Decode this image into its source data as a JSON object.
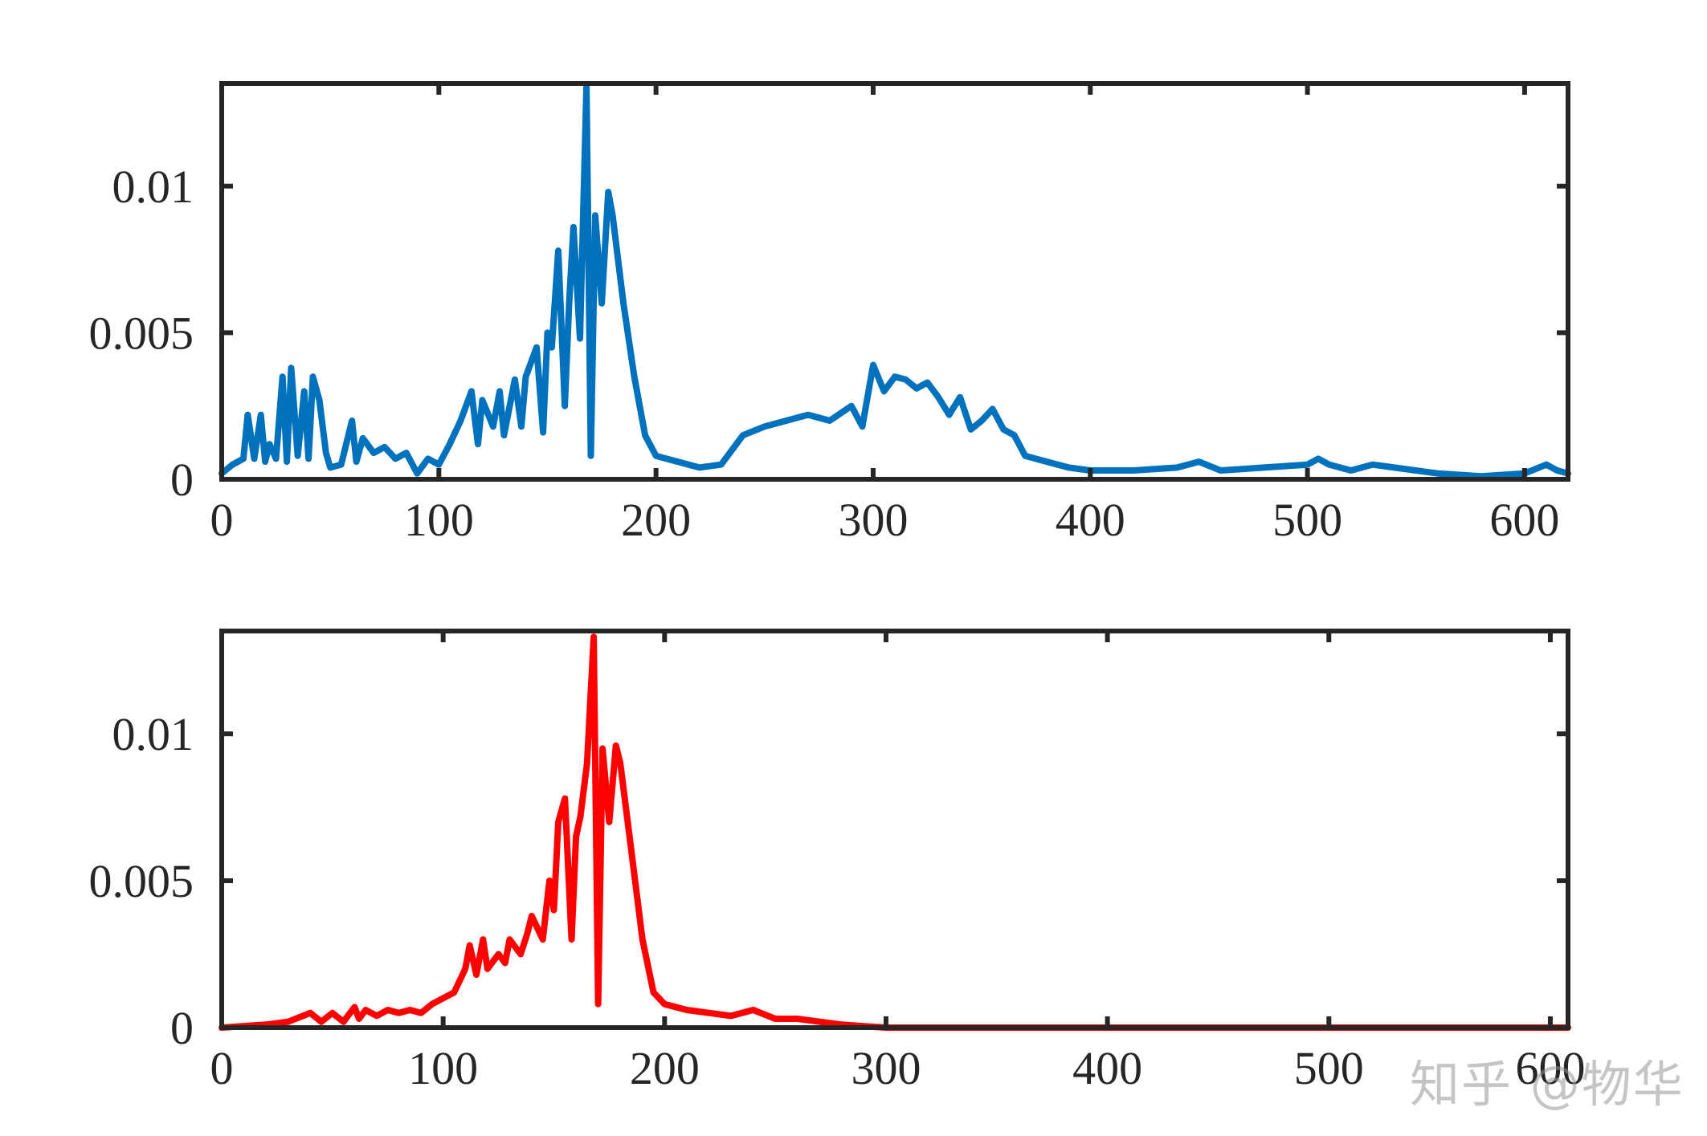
{
  "watermark": "知乎 @物华",
  "chart_data": [
    {
      "type": "line",
      "title": "",
      "xlabel": "",
      "ylabel": "",
      "xlim": [
        0,
        620
      ],
      "ylim": [
        0,
        0.0135
      ],
      "xticks": [
        0,
        100,
        200,
        300,
        400,
        500,
        600
      ],
      "xtick_labels": [
        "0",
        "100",
        "200",
        "300",
        "400",
        "500",
        "600"
      ],
      "yticks": [
        0,
        0.005,
        0.01
      ],
      "ytick_labels": [
        "0",
        "0.005",
        "0.01"
      ],
      "grid": false,
      "series": [
        {
          "color": "#0072BD",
          "x": [
            0,
            5,
            10,
            12,
            15,
            18,
            20,
            22,
            25,
            28,
            30,
            32,
            35,
            38,
            40,
            42,
            45,
            48,
            50,
            55,
            60,
            62,
            65,
            70,
            75,
            80,
            85,
            90,
            95,
            100,
            105,
            110,
            115,
            118,
            120,
            125,
            128,
            130,
            135,
            138,
            140,
            145,
            148,
            150,
            152,
            155,
            158,
            160,
            162,
            165,
            168,
            170,
            172,
            175,
            178,
            180,
            185,
            190,
            195,
            200,
            210,
            220,
            230,
            240,
            250,
            260,
            270,
            280,
            290,
            295,
            300,
            305,
            310,
            315,
            320,
            325,
            330,
            335,
            340,
            345,
            350,
            355,
            360,
            365,
            370,
            380,
            390,
            400,
            420,
            440,
            450,
            460,
            480,
            500,
            505,
            510,
            520,
            530,
            540,
            560,
            580,
            600,
            610,
            615,
            620
          ],
          "y": [
            0.0002,
            0.0005,
            0.0007,
            0.0022,
            0.0007,
            0.0022,
            0.0006,
            0.0012,
            0.0007,
            0.0035,
            0.0006,
            0.0038,
            0.0008,
            0.003,
            0.0007,
            0.0035,
            0.0027,
            0.0009,
            0.0004,
            0.0005,
            0.002,
            0.0006,
            0.0014,
            0.0009,
            0.0011,
            0.0007,
            0.0009,
            0.0002,
            0.0007,
            0.0005,
            0.0012,
            0.002,
            0.003,
            0.0012,
            0.0027,
            0.0018,
            0.003,
            0.0015,
            0.0034,
            0.0018,
            0.0035,
            0.0045,
            0.0016,
            0.005,
            0.0045,
            0.0078,
            0.0025,
            0.006,
            0.0086,
            0.0048,
            0.0134,
            0.0008,
            0.009,
            0.006,
            0.0098,
            0.009,
            0.006,
            0.0035,
            0.0015,
            0.0008,
            0.0006,
            0.0004,
            0.0005,
            0.0015,
            0.0018,
            0.002,
            0.0022,
            0.002,
            0.0025,
            0.0018,
            0.0039,
            0.003,
            0.0035,
            0.0034,
            0.0031,
            0.0033,
            0.0028,
            0.0022,
            0.0028,
            0.0017,
            0.002,
            0.0024,
            0.0017,
            0.0015,
            0.0008,
            0.0006,
            0.0004,
            0.0003,
            0.0003,
            0.0004,
            0.0006,
            0.0003,
            0.0004,
            0.0005,
            0.0007,
            0.0005,
            0.0003,
            0.0005,
            0.0004,
            0.0002,
            0.0001,
            0.0002,
            0.0005,
            0.0003,
            0.0002
          ]
        }
      ]
    },
    {
      "type": "line",
      "title": "",
      "xlabel": "",
      "ylabel": "",
      "xlim": [
        0,
        608
      ],
      "ylim": [
        0,
        0.0135
      ],
      "xticks": [
        0,
        100,
        200,
        300,
        400,
        500,
        600
      ],
      "xtick_labels": [
        "0",
        "100",
        "200",
        "300",
        "400",
        "500",
        "600"
      ],
      "yticks": [
        0,
        0.005,
        0.01
      ],
      "ytick_labels": [
        "0",
        "0.005",
        "0.01"
      ],
      "grid": false,
      "series": [
        {
          "color": "#FF0000",
          "x": [
            0,
            20,
            30,
            40,
            45,
            50,
            55,
            60,
            62,
            65,
            70,
            75,
            80,
            85,
            90,
            95,
            100,
            105,
            110,
            112,
            115,
            118,
            120,
            125,
            128,
            130,
            135,
            138,
            140,
            145,
            148,
            150,
            152,
            155,
            158,
            160,
            162,
            165,
            168,
            170,
            172,
            175,
            178,
            180,
            185,
            190,
            195,
            200,
            210,
            220,
            230,
            240,
            250,
            260,
            270,
            280,
            290,
            300,
            350,
            400,
            450,
            500,
            550,
            600,
            608
          ],
          "y": [
            0,
            0.0001,
            0.0002,
            0.0005,
            0.0002,
            0.0005,
            0.0002,
            0.0007,
            0.0003,
            0.0006,
            0.0004,
            0.0006,
            0.0005,
            0.0006,
            0.0005,
            0.0008,
            0.001,
            0.0012,
            0.002,
            0.0028,
            0.0018,
            0.003,
            0.002,
            0.0025,
            0.0022,
            0.003,
            0.0025,
            0.0032,
            0.0038,
            0.003,
            0.005,
            0.004,
            0.007,
            0.0078,
            0.003,
            0.0065,
            0.0072,
            0.009,
            0.0133,
            0.0008,
            0.0095,
            0.007,
            0.0096,
            0.009,
            0.006,
            0.003,
            0.0012,
            0.0008,
            0.0006,
            0.0005,
            0.0004,
            0.0006,
            0.0003,
            0.0003,
            0.0002,
            0.0001,
            5e-05,
            0,
            0,
            0,
            0,
            0,
            0,
            0,
            0
          ]
        }
      ]
    }
  ]
}
